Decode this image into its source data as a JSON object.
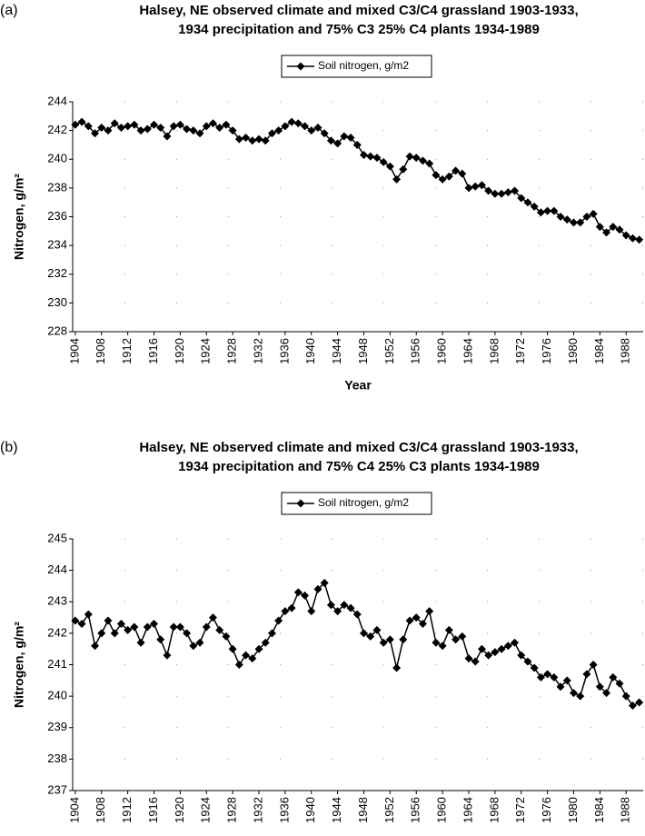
{
  "chart_data": [
    {
      "type": "line",
      "panel_label": "(a)",
      "title": [
        "Halsey, NE observed climate and mixed C3/C4 grassland 1903-1933,",
        "1934 precipitation and 75% C3 25% C4 plants 1934-1989"
      ],
      "xlabel": "Year",
      "ylabel": "Nitrogen, g/m²",
      "x": [
        1904,
        1905,
        1906,
        1907,
        1908,
        1909,
        1910,
        1911,
        1912,
        1913,
        1914,
        1915,
        1916,
        1917,
        1918,
        1919,
        1920,
        1921,
        1922,
        1923,
        1924,
        1925,
        1926,
        1927,
        1928,
        1929,
        1930,
        1931,
        1932,
        1933,
        1934,
        1935,
        1936,
        1937,
        1938,
        1939,
        1940,
        1941,
        1942,
        1943,
        1944,
        1945,
        1946,
        1947,
        1948,
        1949,
        1950,
        1951,
        1952,
        1953,
        1954,
        1955,
        1956,
        1957,
        1958,
        1959,
        1960,
        1961,
        1962,
        1963,
        1964,
        1965,
        1966,
        1967,
        1968,
        1969,
        1970,
        1971,
        1972,
        1973,
        1974,
        1975,
        1976,
        1977,
        1978,
        1979,
        1980,
        1981,
        1982,
        1983,
        1984,
        1985,
        1986,
        1987,
        1988,
        1989,
        1990
      ],
      "series": [
        {
          "name": "Soil nitrogen, g/m2",
          "color": "#000000",
          "values": [
            242.4,
            242.6,
            242.3,
            241.8,
            242.2,
            242.0,
            242.5,
            242.2,
            242.3,
            242.4,
            242.0,
            242.1,
            242.4,
            242.2,
            241.6,
            242.3,
            242.4,
            242.1,
            242.0,
            241.8,
            242.3,
            242.5,
            242.2,
            242.4,
            242.0,
            241.4,
            241.5,
            241.3,
            241.4,
            241.3,
            241.8,
            242.0,
            242.3,
            242.6,
            242.5,
            242.3,
            242.0,
            242.2,
            241.8,
            241.3,
            241.1,
            241.6,
            241.5,
            241.0,
            240.3,
            240.2,
            240.1,
            239.8,
            239.5,
            238.6,
            239.3,
            240.2,
            240.1,
            239.9,
            239.7,
            238.9,
            238.6,
            238.8,
            239.2,
            239.0,
            238.0,
            238.1,
            238.2,
            237.8,
            237.6,
            237.6,
            237.7,
            237.8,
            237.3,
            237.0,
            236.7,
            236.3,
            236.4,
            236.4,
            236.0,
            235.8,
            235.6,
            235.6,
            236.0,
            236.2,
            235.3,
            234.9,
            235.3,
            235.1,
            234.7,
            234.5,
            234.4
          ]
        }
      ],
      "xlim": [
        1903.6,
        1990.6
      ],
      "xticks": [
        1904,
        1908,
        1912,
        1916,
        1920,
        1924,
        1928,
        1932,
        1936,
        1940,
        1944,
        1948,
        1952,
        1956,
        1960,
        1964,
        1968,
        1972,
        1976,
        1980,
        1984,
        1988
      ],
      "ylim": [
        228,
        244
      ],
      "yticks": [
        228,
        230,
        232,
        234,
        236,
        238,
        240,
        242,
        244
      ],
      "grid": true,
      "legend": "top"
    },
    {
      "type": "line",
      "panel_label": "(b)",
      "title": [
        "Halsey, NE observed climate and mixed C3/C4 grassland 1903-1933,",
        "1934 precipitation and 75% C4 25% C3 plants 1934-1989"
      ],
      "xlabel": "Year",
      "ylabel": "Nitrogen, g/m²",
      "x": [
        1904,
        1905,
        1906,
        1907,
        1908,
        1909,
        1910,
        1911,
        1912,
        1913,
        1914,
        1915,
        1916,
        1917,
        1918,
        1919,
        1920,
        1921,
        1922,
        1923,
        1924,
        1925,
        1926,
        1927,
        1928,
        1929,
        1930,
        1931,
        1932,
        1933,
        1934,
        1935,
        1936,
        1937,
        1938,
        1939,
        1940,
        1941,
        1942,
        1943,
        1944,
        1945,
        1946,
        1947,
        1948,
        1949,
        1950,
        1951,
        1952,
        1953,
        1954,
        1955,
        1956,
        1957,
        1958,
        1959,
        1960,
        1961,
        1962,
        1963,
        1964,
        1965,
        1966,
        1967,
        1968,
        1969,
        1970,
        1971,
        1972,
        1973,
        1974,
        1975,
        1976,
        1977,
        1978,
        1979,
        1980,
        1981,
        1982,
        1983,
        1984,
        1985,
        1986,
        1987,
        1988,
        1989,
        1990
      ],
      "series": [
        {
          "name": "Soil nitrogen, g/m2",
          "color": "#000000",
          "values": [
            242.4,
            242.3,
            242.6,
            241.6,
            242.0,
            242.4,
            242.0,
            242.3,
            242.1,
            242.2,
            241.7,
            242.2,
            242.3,
            241.8,
            241.3,
            242.2,
            242.2,
            242.0,
            241.6,
            241.7,
            242.2,
            242.5,
            242.1,
            241.9,
            241.5,
            241.0,
            241.3,
            241.2,
            241.5,
            241.7,
            242.0,
            242.4,
            242.7,
            242.8,
            243.3,
            243.2,
            242.7,
            243.4,
            243.6,
            242.9,
            242.7,
            242.9,
            242.8,
            242.6,
            242.0,
            241.9,
            242.1,
            241.7,
            241.8,
            240.9,
            241.8,
            242.4,
            242.5,
            242.3,
            242.7,
            241.7,
            241.6,
            242.1,
            241.8,
            241.9,
            241.2,
            241.1,
            241.5,
            241.3,
            241.4,
            241.5,
            241.6,
            241.7,
            241.3,
            241.1,
            240.9,
            240.6,
            240.7,
            240.6,
            240.3,
            240.5,
            240.1,
            240.0,
            240.7,
            241.0,
            240.3,
            240.1,
            240.6,
            240.4,
            240.0,
            239.7,
            239.8
          ]
        }
      ],
      "xlim": [
        1903.6,
        1990.6
      ],
      "xticks": [
        1904,
        1908,
        1912,
        1916,
        1920,
        1924,
        1928,
        1932,
        1936,
        1940,
        1944,
        1948,
        1952,
        1956,
        1960,
        1964,
        1968,
        1972,
        1976,
        1980,
        1984,
        1988
      ],
      "ylim": [
        237,
        245
      ],
      "yticks": [
        237,
        238,
        239,
        240,
        241,
        242,
        243,
        244,
        245
      ],
      "grid": true,
      "legend": "top"
    }
  ]
}
